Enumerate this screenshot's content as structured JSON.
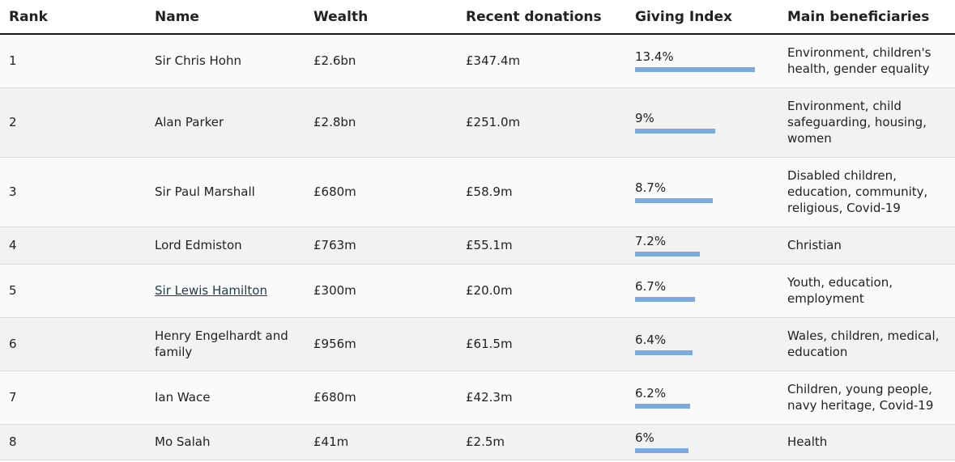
{
  "headers": {
    "rank": "Rank",
    "name": "Name",
    "wealth": "Wealth",
    "donations": "Recent donations",
    "giving_index": "Giving Index",
    "beneficiaries": "Main beneficiaries"
  },
  "rows": [
    {
      "rank": "1",
      "name": "Sir Chris Hohn",
      "wealth": "£2.6bn",
      "donations": "£347.4m",
      "giving_index": "13.4%",
      "giving_index_value": 13.4,
      "beneficiaries": "Environment, children's health, gender equality",
      "linked": false
    },
    {
      "rank": "2",
      "name": "Alan Parker",
      "wealth": "£2.8bn",
      "donations": "£251.0m",
      "giving_index": "9%",
      "giving_index_value": 9,
      "beneficiaries": "Environment, child safeguarding, housing, women",
      "linked": false
    },
    {
      "rank": "3",
      "name": "Sir Paul Marshall",
      "wealth": "£680m",
      "donations": "£58.9m",
      "giving_index": "8.7%",
      "giving_index_value": 8.7,
      "beneficiaries": "Disabled children, education, community, religious, Covid-19",
      "linked": false
    },
    {
      "rank": "4",
      "name": "Lord Edmiston",
      "wealth": "£763m",
      "donations": "£55.1m",
      "giving_index": "7.2%",
      "giving_index_value": 7.2,
      "beneficiaries": "Christian",
      "linked": false
    },
    {
      "rank": "5",
      "name": "Sir Lewis Hamilton",
      "wealth": "£300m",
      "donations": "£20.0m",
      "giving_index": "6.7%",
      "giving_index_value": 6.7,
      "beneficiaries": "Youth, education, employment",
      "linked": true
    },
    {
      "rank": "6",
      "name": "Henry Engelhardt and family",
      "wealth": "£956m",
      "donations": "£61.5m",
      "giving_index": "6.4%",
      "giving_index_value": 6.4,
      "beneficiaries": "Wales, children, medical, education",
      "linked": false
    },
    {
      "rank": "7",
      "name": "Ian Wace",
      "wealth": "£680m",
      "donations": "£42.3m",
      "giving_index": "6.2%",
      "giving_index_value": 6.2,
      "beneficiaries": "Children, young people, navy heritage, Covid-19",
      "linked": false
    },
    {
      "rank": "8",
      "name": "Mo Salah",
      "wealth": "£41m",
      "donations": "£2.5m",
      "giving_index": "6%",
      "giving_index_value": 6,
      "beneficiaries": "Health",
      "linked": false
    }
  ],
  "colors": {
    "bar": "#7aaadf",
    "link": "#1f3d4a",
    "row_light": "#fafafa",
    "row_dark": "#f2f2f2"
  }
}
